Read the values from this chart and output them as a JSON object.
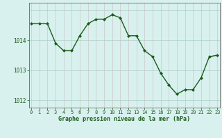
{
  "x": [
    0,
    1,
    2,
    3,
    4,
    5,
    6,
    7,
    8,
    9,
    10,
    11,
    12,
    13,
    14,
    15,
    16,
    17,
    18,
    19,
    20,
    21,
    22,
    23
  ],
  "y": [
    1014.55,
    1014.55,
    1014.55,
    1013.9,
    1013.65,
    1013.65,
    1014.15,
    1014.55,
    1014.7,
    1014.7,
    1014.85,
    1014.75,
    1014.15,
    1014.15,
    1013.65,
    1013.45,
    1012.9,
    1012.5,
    1012.2,
    1012.35,
    1012.35,
    1012.75,
    1013.45,
    1013.5
  ],
  "line_color": "#1a5c1a",
  "marker_color": "#1a5c1a",
  "bg_color": "#d8f0ee",
  "hgrid_color": "#b8d8d4",
  "vgrid_color": "#c8b8b8",
  "axis_label_color": "#1a5c1a",
  "tick_color": "#1a5c1a",
  "xlabel": "Graphe pression niveau de la mer (hPa)",
  "ytick_labels": [
    "1012",
    "1013",
    "1014"
  ],
  "ytick_values": [
    1012,
    1013,
    1014
  ],
  "ylim": [
    1011.75,
    1015.25
  ],
  "xlim": [
    -0.3,
    23.3
  ],
  "xtick_labels": [
    "0",
    "1",
    "2",
    "3",
    "4",
    "5",
    "6",
    "7",
    "8",
    "9",
    "10",
    "11",
    "12",
    "13",
    "14",
    "15",
    "16",
    "17",
    "18",
    "19",
    "20",
    "21",
    "22",
    "23"
  ]
}
